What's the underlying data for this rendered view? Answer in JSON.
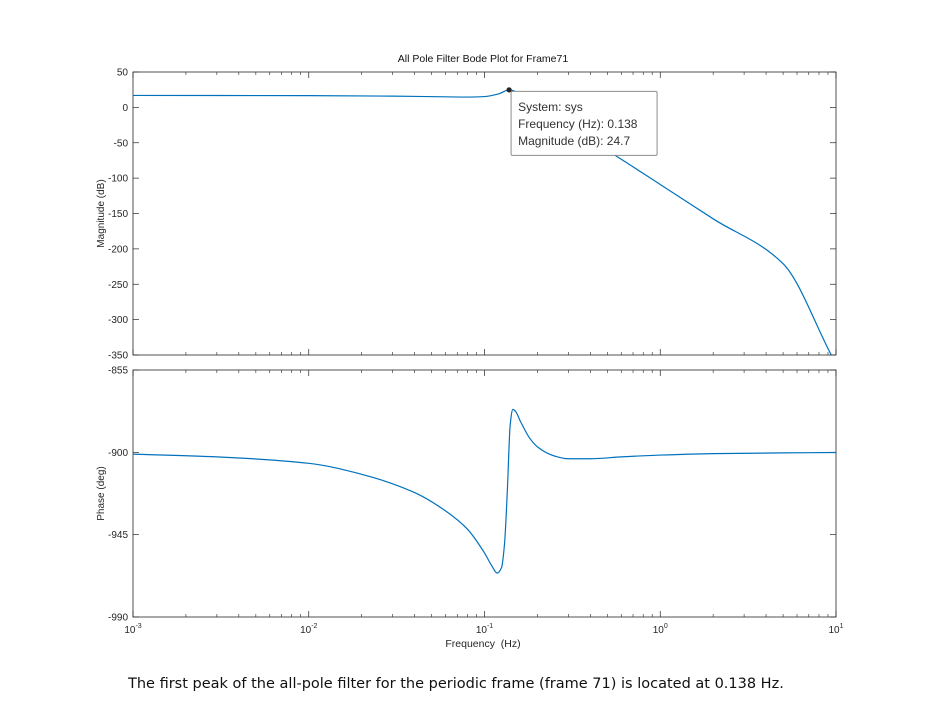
{
  "colors": {
    "line": "#0072BD",
    "axis": "#262626",
    "tooltip_border": "#8c8c8c",
    "tooltip_bg": "#ffffff"
  },
  "chart_data": {
    "type": "line",
    "title": "All Pole Filter Bode Plot for Frame71",
    "xlabel": "Frequency  (Hz)",
    "x_scale": "log",
    "xlim": [
      0.001,
      10
    ],
    "x_ticks": [
      {
        "value": 0.001,
        "base": "10",
        "exp": "-3"
      },
      {
        "value": 0.01,
        "base": "10",
        "exp": "-2"
      },
      {
        "value": 0.1,
        "base": "10",
        "exp": "-1"
      },
      {
        "value": 1,
        "base": "10",
        "exp": "0"
      },
      {
        "value": 10,
        "base": "10",
        "exp": "1"
      }
    ],
    "panels": [
      {
        "name": "magnitude",
        "ylabel": "Magnitude (dB)",
        "ylim": [
          -350,
          50
        ],
        "y_ticks": [
          50,
          0,
          -50,
          -100,
          -150,
          -200,
          -250,
          -300,
          -350
        ],
        "series": [
          {
            "x": [
              0.001,
              0.003,
              0.01,
              0.03,
              0.06,
              0.08,
              0.1,
              0.12,
              0.138,
              0.16,
              0.2,
              0.3,
              0.5,
              1,
              2,
              5,
              9.4
            ],
            "y": [
              16.9,
              16.8,
              16.6,
              15.9,
              14.9,
              14.6,
              15.3,
              19.0,
              24.7,
              19.0,
              6.0,
              -28.0,
              -61.0,
              -109.0,
              -157.5,
              -221.0,
              -350.0
            ]
          }
        ],
        "datatip": {
          "x": 0.138,
          "y": 24.7,
          "lines": [
            "System: sys",
            "Frequency (Hz): 0.138",
            "Magnitude (dB): 24.7"
          ]
        }
      },
      {
        "name": "phase",
        "ylabel": "Phase (deg)",
        "ylim": [
          -990,
          -855
        ],
        "y_ticks": [
          -855,
          -900,
          -945,
          -990
        ],
        "series": [
          {
            "x": [
              0.001,
              0.003,
              0.01,
              0.02,
              0.04,
              0.06,
              0.08,
              0.1,
              0.11,
              0.118,
              0.125,
              0.13,
              0.135,
              0.14,
              0.145,
              0.15,
              0.16,
              0.18,
              0.2,
              0.25,
              0.3,
              0.4,
              0.6,
              1,
              2,
              5,
              10
            ],
            "y": [
              -901,
              -902.5,
              -906,
              -912,
              -922,
              -932,
              -942,
              -955,
              -962,
              -966,
              -963,
              -950,
              -920,
              -885,
              -876.5,
              -877.5,
              -883,
              -892,
              -897,
              -902,
              -903.5,
              -903.5,
              -902.5,
              -901.5,
              -900.7,
              -900.3,
              -900.1
            ]
          }
        ]
      }
    ]
  },
  "caption": "The first peak of the all-pole filter for the periodic frame (frame 71) is located at 0.138 Hz."
}
